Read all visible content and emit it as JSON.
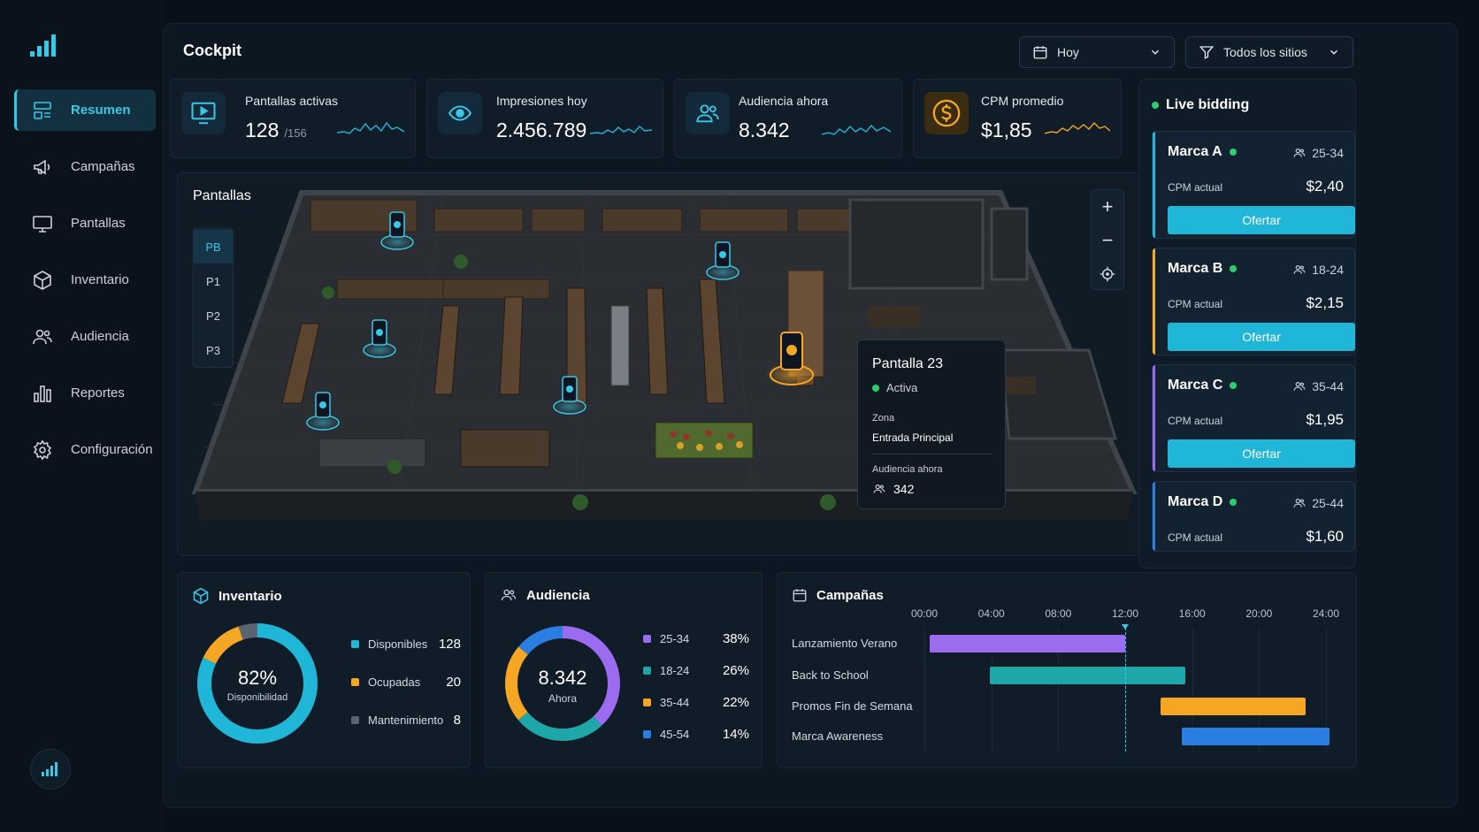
{
  "sidebar": {
    "items": [
      {
        "label": "Resumen",
        "icon": "dashboard-icon",
        "active": true
      },
      {
        "label": "Campañas",
        "icon": "megaphone-icon"
      },
      {
        "label": "Pantallas",
        "icon": "monitor-icon"
      },
      {
        "label": "Inventario",
        "icon": "box-icon"
      },
      {
        "label": "Audiencia",
        "icon": "users-icon"
      },
      {
        "label": "Reportes",
        "icon": "bar-chart-icon"
      },
      {
        "label": "Configuración",
        "icon": "gear-icon"
      }
    ]
  },
  "header": {
    "title": "Cockpit",
    "date_filter": "Hoy",
    "site_filter": "Todos los sitios"
  },
  "kpis": [
    {
      "label": "Pantallas activas",
      "value": "128",
      "sub": "/156",
      "icon": "screen-play-icon"
    },
    {
      "label": "Impresiones hoy",
      "value": "2.456.789",
      "sub": "",
      "icon": "eye-icon"
    },
    {
      "label": "Audiencia ahora",
      "value": "8.342",
      "sub": "",
      "icon": "users-icon"
    },
    {
      "label": "CPM promedio",
      "value": "$1,85",
      "sub": "",
      "icon": "dollar-icon"
    }
  ],
  "map": {
    "title": "Pantallas",
    "floors": [
      "PB",
      "P1",
      "P2",
      "P3"
    ],
    "active_floor": "PB",
    "zoom_in": "+",
    "zoom_out": "−",
    "tooltip": {
      "title": "Pantalla 23",
      "status": "Activa",
      "zone_label": "Zona",
      "zone_value": "Entrada Principal",
      "audience_label": "Audiencia ahora",
      "audience_value": "342"
    }
  },
  "live_bidding": {
    "title": "Live bidding",
    "cpm_label": "CPM actual",
    "button_label": "Ofertar",
    "bids": [
      {
        "brand": "Marca A",
        "age": "25-34",
        "cpm": "$2,40",
        "color": "#1fb6d8"
      },
      {
        "brand": "Marca B",
        "age": "18-24",
        "cpm": "$2,15",
        "color": "#f5a623"
      },
      {
        "brand": "Marca C",
        "age": "35-44",
        "cpm": "$1,95",
        "color": "#9b6cf0"
      },
      {
        "brand": "Marca D",
        "age": "25-44",
        "cpm": "$1,60",
        "color": "#2a7de1"
      }
    ]
  },
  "inventory": {
    "title": "Inventario",
    "center_value": "82%",
    "center_label": "Disponibilidad",
    "items": [
      {
        "label": "Disponibles",
        "value": "128",
        "count": 128,
        "color": "#1fb6d8"
      },
      {
        "label": "Ocupadas",
        "value": "20",
        "count": 20,
        "color": "#f5a623"
      },
      {
        "label": "Mantenimiento",
        "value": "8",
        "count": 8,
        "color": "#5a6470"
      }
    ]
  },
  "audience": {
    "title": "Audiencia",
    "center_value": "8.342",
    "center_label": "Ahora",
    "items": [
      {
        "label": "25-34",
        "value": "38%",
        "pct": 38,
        "color": "#9b6cf0"
      },
      {
        "label": "18-24",
        "value": "26%",
        "pct": 26,
        "color": "#1fa6a8"
      },
      {
        "label": "35-44",
        "value": "22%",
        "pct": 22,
        "color": "#f5a623"
      },
      {
        "label": "45-54",
        "value": "14%",
        "pct": 14,
        "color": "#2a7de1"
      }
    ]
  },
  "campaigns": {
    "title": "Campañas",
    "ticks": [
      "00:00",
      "04:00",
      "08:00",
      "12:00",
      "16:00",
      "20:00",
      "24:00"
    ],
    "current_hour": 12,
    "rows": [
      {
        "name": "Lanzamiento Verano",
        "start": 0.3,
        "end": 12.0,
        "color": "#9b6cf0"
      },
      {
        "name": "Back to School",
        "start": 3.9,
        "end": 15.6,
        "color": "#1fa6a8"
      },
      {
        "name": "Promos Fin de Semana",
        "start": 14.1,
        "end": 22.8,
        "color": "#f5a623"
      },
      {
        "name": "Marca Awareness",
        "start": 15.4,
        "end": 24.2,
        "color": "#2a7de1"
      }
    ]
  }
}
